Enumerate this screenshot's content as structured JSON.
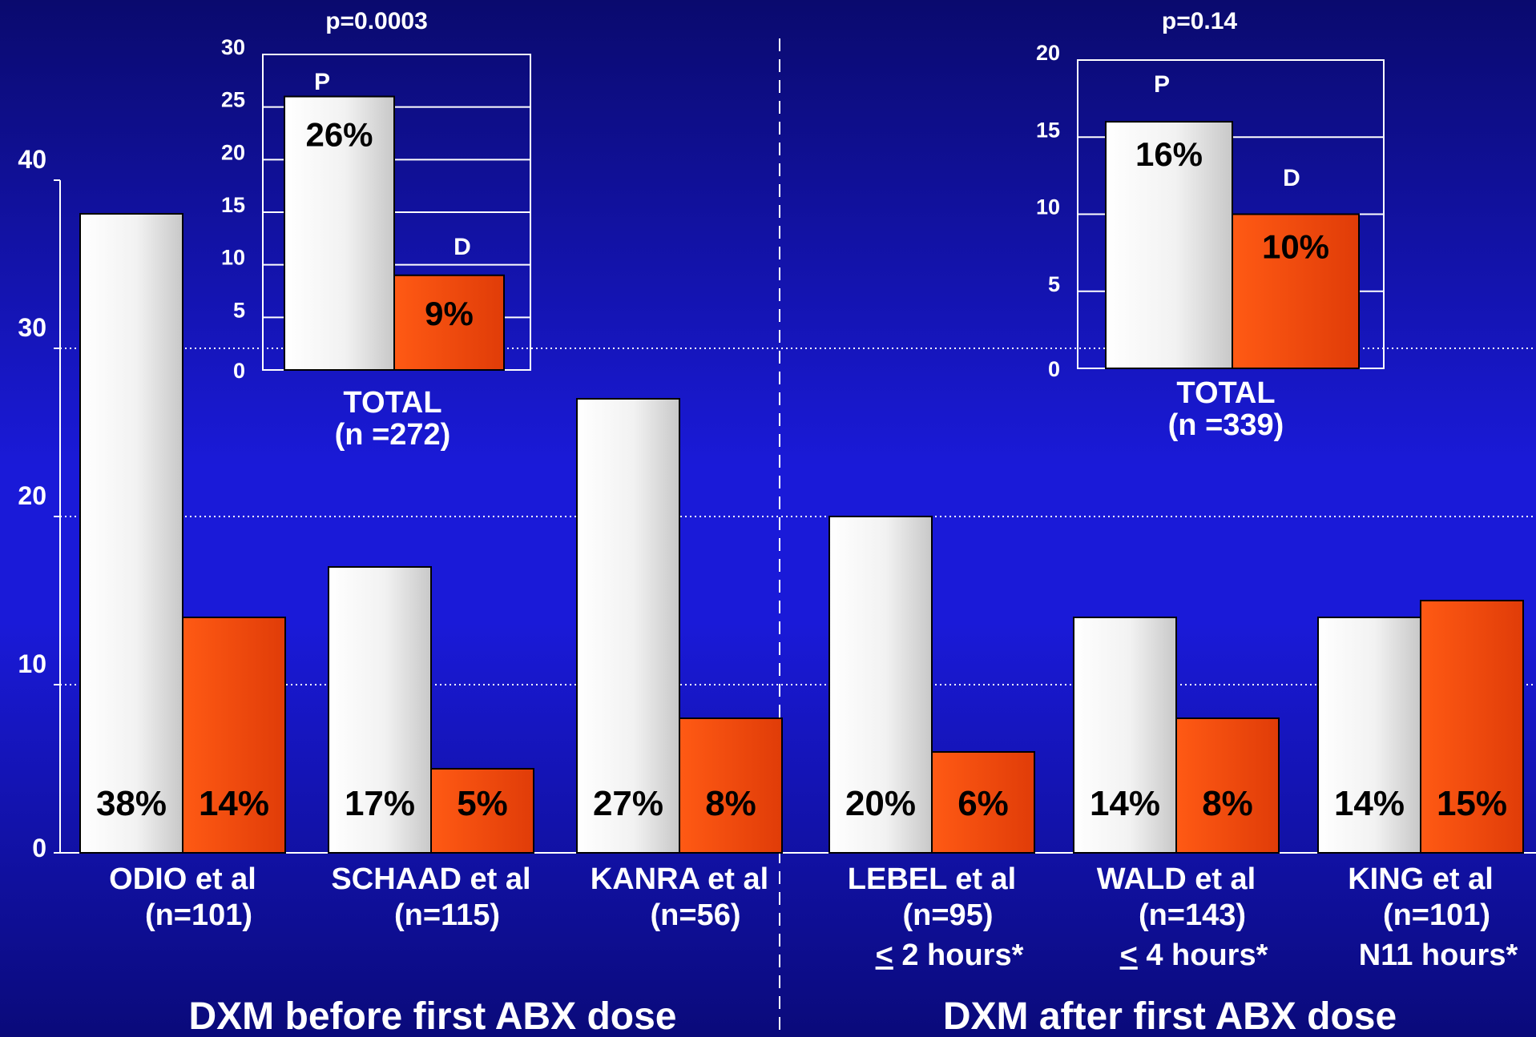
{
  "chart_data": [
    {
      "type": "bar",
      "ylim": [
        0,
        40
      ],
      "yticks": [
        0,
        10,
        20,
        30,
        40
      ],
      "grid": true,
      "series_colors": [
        "#ffffff",
        "#e8420c"
      ],
      "groups": [
        {
          "label1": "ODIO et al",
          "label2": "(n=101)",
          "label3": "",
          "values": [
            38,
            14
          ],
          "pct": [
            "38%",
            "14%"
          ]
        },
        {
          "label1": "SCHAAD et al",
          "label2": "(n=115)",
          "label3": "",
          "values": [
            17,
            5
          ],
          "pct": [
            "17%",
            "5%"
          ]
        },
        {
          "label1": "KANRA et al",
          "label2": "(n=56)",
          "label3": "",
          "values": [
            27,
            8
          ],
          "pct": [
            "27%",
            "8%"
          ]
        },
        {
          "label1": "LEBEL et al",
          "label2": "(n=95)",
          "label3": "2 hours*",
          "label3_prefix": "<",
          "values": [
            20,
            6
          ],
          "pct": [
            "20%",
            "6%"
          ]
        },
        {
          "label1": "WALD et al",
          "label2": "(n=143)",
          "label3": "4 hours*",
          "label3_prefix": "<",
          "values": [
            14,
            8
          ],
          "pct": [
            "14%",
            "8%"
          ]
        },
        {
          "label1": "KING et al",
          "label2": "(n=101)",
          "label3": "N11 hours*",
          "label3_prefix": "",
          "values": [
            14,
            15
          ],
          "pct": [
            "14%",
            "15%"
          ]
        }
      ],
      "section_labels": [
        "DXM before first ABX dose",
        "DXM after first ABX dose"
      ]
    },
    {
      "type": "bar",
      "title": "p=0.0003",
      "ylim": [
        0,
        30
      ],
      "yticks": [
        0,
        5,
        10,
        15,
        20,
        25,
        30
      ],
      "categories": [
        "P",
        "D"
      ],
      "values": [
        26,
        9
      ],
      "pct": [
        "26%",
        "9%"
      ],
      "xlabel": "TOTAL",
      "xlabel2": "(n =272)"
    },
    {
      "type": "bar",
      "title": "p=0.14",
      "ylim": [
        0,
        20
      ],
      "yticks": [
        0,
        5,
        10,
        15,
        20
      ],
      "categories": [
        "P",
        "D"
      ],
      "values": [
        16,
        10
      ],
      "pct": [
        "16%",
        "10%"
      ],
      "xlabel": "TOTAL",
      "xlabel2": "(n =339)"
    }
  ]
}
